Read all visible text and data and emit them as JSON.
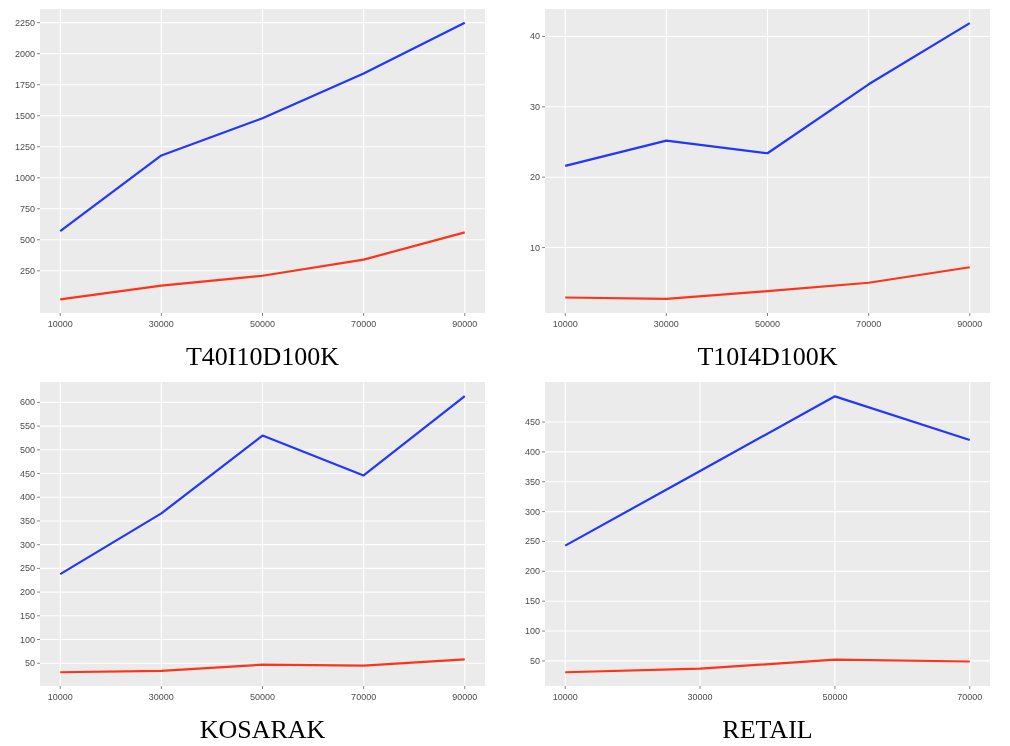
{
  "chart_data": [
    {
      "type": "line",
      "title": "T40I10D100K",
      "x": [
        10000,
        30000,
        50000,
        70000,
        90000
      ],
      "xlim": [
        6000,
        94000
      ],
      "xticks": [
        10000,
        30000,
        50000,
        70000,
        90000
      ],
      "ylim": [
        -90,
        2360
      ],
      "yticks": [
        250,
        500,
        750,
        1000,
        1250,
        1500,
        1750,
        2000,
        2250
      ],
      "grid": true,
      "series": [
        {
          "color": "#2236ff",
          "values": [
            570,
            1180,
            1480,
            1840,
            2250
          ]
        },
        {
          "color": "#ff3319",
          "values": [
            20,
            130,
            210,
            340,
            560
          ]
        }
      ]
    },
    {
      "type": "line",
      "title": "T10I4D100K",
      "x": [
        10000,
        30000,
        50000,
        70000,
        90000
      ],
      "xlim": [
        6000,
        94000
      ],
      "xticks": [
        10000,
        30000,
        50000,
        70000,
        90000
      ],
      "ylim": [
        0.7,
        43.9
      ],
      "yticks": [
        10,
        20,
        30,
        40
      ],
      "grid": true,
      "series": [
        {
          "color": "#2236ff",
          "values": [
            21.6,
            25.2,
            23.4,
            33.2,
            41.9
          ]
        },
        {
          "color": "#ff3319",
          "values": [
            2.9,
            2.7,
            3.8,
            5.0,
            7.2
          ]
        }
      ]
    },
    {
      "type": "line",
      "title": "KOSARAK",
      "x": [
        10000,
        30000,
        50000,
        70000,
        90000
      ],
      "xlim": [
        6000,
        94000
      ],
      "xticks": [
        10000,
        30000,
        50000,
        70000,
        90000
      ],
      "ylim": [
        2,
        643
      ],
      "yticks": [
        50,
        100,
        150,
        200,
        250,
        300,
        350,
        400,
        450,
        500,
        550,
        600
      ],
      "grid": true,
      "series": [
        {
          "color": "#2236ff",
          "values": [
            238,
            366,
            530,
            446,
            613
          ]
        },
        {
          "color": "#ff3319",
          "values": [
            31,
            34,
            47,
            45,
            58
          ]
        }
      ]
    },
    {
      "type": "line",
      "title": "RETAIL",
      "x": [
        10000,
        30000,
        50000,
        70000
      ],
      "xlim": [
        7000,
        73000
      ],
      "xticks": [
        10000,
        30000,
        50000,
        70000
      ],
      "ylim": [
        8,
        517
      ],
      "yticks": [
        50,
        100,
        150,
        200,
        250,
        300,
        350,
        400,
        450
      ],
      "grid": true,
      "series": [
        {
          "color": "#2236ff",
          "values": [
            243,
            368,
            493,
            420
          ]
        },
        {
          "color": "#ff3319",
          "values": [
            31,
            37,
            52,
            49
          ]
        }
      ]
    }
  ]
}
